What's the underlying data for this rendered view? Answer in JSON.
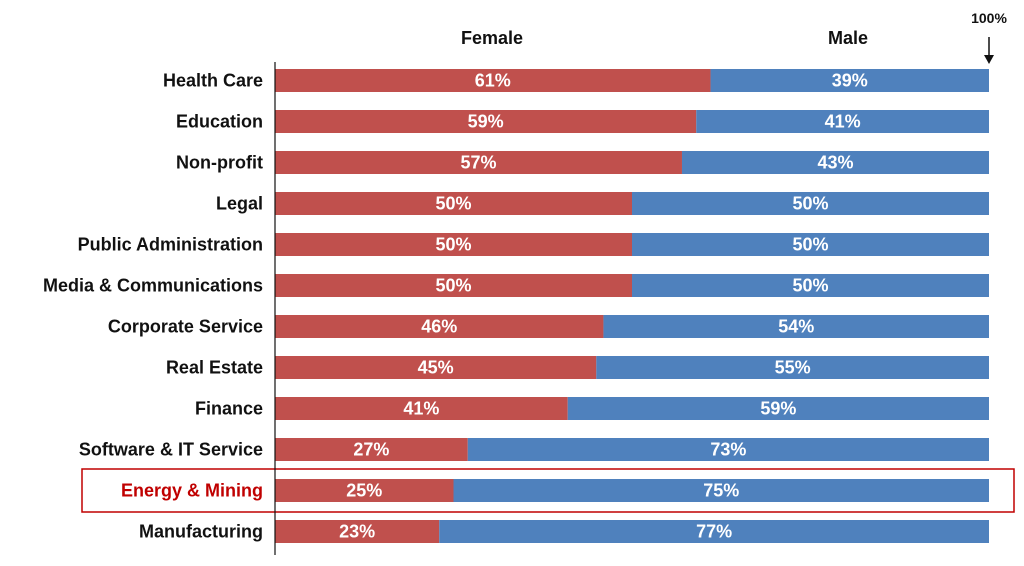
{
  "chart_data": {
    "type": "bar",
    "orientation": "horizontal",
    "stacked": true,
    "percent_stacked": true,
    "categories": [
      "Health Care",
      "Education",
      "Non-profit",
      "Legal",
      "Public Administration",
      "Media & Communications",
      "Corporate Service",
      "Real Estate",
      "Finance",
      "Software & IT Service",
      "Energy & Mining",
      "Manufacturing"
    ],
    "series": [
      {
        "name": "Female",
        "color": "#c0504d",
        "values": [
          61,
          59,
          57,
          50,
          50,
          50,
          46,
          45,
          41,
          27,
          25,
          23
        ],
        "labels": [
          "61%",
          "59%",
          "57%",
          "50%",
          "50%",
          "50%",
          "46%",
          "45%",
          "41%",
          "27%",
          "25%",
          "23%"
        ]
      },
      {
        "name": "Male",
        "color": "#4f81bd",
        "values": [
          39,
          41,
          43,
          50,
          50,
          50,
          54,
          55,
          59,
          73,
          75,
          77
        ],
        "labels": [
          "39%",
          "41%",
          "43%",
          "50%",
          "50%",
          "50%",
          "54%",
          "55%",
          "59%",
          "73%",
          "75%",
          "77%"
        ]
      }
    ],
    "xlim": [
      0,
      100
    ],
    "marker_label": "100%",
    "highlighted_category": "Energy & Mining",
    "highlight_color": "#c00000",
    "legend": "top",
    "grid": false
  }
}
